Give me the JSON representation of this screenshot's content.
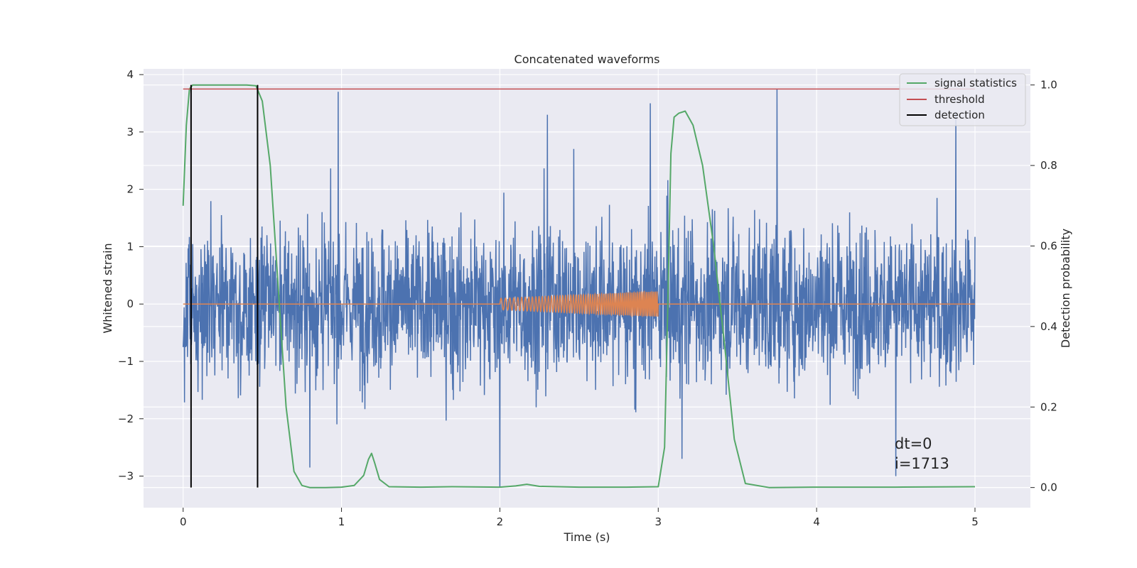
{
  "chart_data": {
    "type": "line",
    "title": "Concatenated waveforms",
    "xlabel": "Time (s)",
    "ylabel": "Whitened strain",
    "y2label": "Detection probability",
    "xlim": [
      -0.25,
      5.35
    ],
    "ylim": [
      -3.55,
      4.1
    ],
    "y2lim": [
      -0.05,
      1.04
    ],
    "x_ticks": [
      0,
      1,
      2,
      3,
      4,
      5
    ],
    "x_tick_labels": [
      "0",
      "1",
      "2",
      "3",
      "4",
      "5"
    ],
    "y_ticks": [
      -3,
      -2,
      -1,
      0,
      1,
      2,
      3,
      4
    ],
    "y_tick_labels": [
      "−3",
      "−2",
      "−1",
      "0",
      "1",
      "2",
      "3",
      "4"
    ],
    "y2_ticks": [
      0.0,
      0.2,
      0.4,
      0.6,
      0.8,
      1.0
    ],
    "y2_tick_labels": [
      "0.0",
      "0.2",
      "0.4",
      "0.6",
      "0.8",
      "1.0"
    ],
    "grid": true,
    "legend_position": "top-right",
    "colors": {
      "strain": "#4c72b0",
      "injection": "#dd8452",
      "statistics": "#55a868",
      "threshold": "#c44e52",
      "detection": "#000000",
      "axes_bg": "#eaeaf2",
      "grid": "#ffffff"
    },
    "legend": [
      "signal statistics",
      "threshold",
      "detection"
    ],
    "strain": {
      "x_range": [
        0,
        5
      ],
      "approx_envelope": [
        -2.2,
        2.2
      ],
      "spike_peaks": [
        {
          "x": 0.98,
          "y": 3.7
        },
        {
          "x": 2.0,
          "y": -3.2
        },
        {
          "x": 2.3,
          "y": 3.3
        },
        {
          "x": 2.95,
          "y": 3.5
        },
        {
          "x": 3.75,
          "y": 3.75
        },
        {
          "x": 4.88,
          "y": 3.35
        },
        {
          "x": 0.8,
          "y": -2.85
        },
        {
          "x": 4.5,
          "y": -3.0
        },
        {
          "x": 3.15,
          "y": -2.7
        }
      ]
    },
    "injection": {
      "x": [
        0,
        2.0,
        2.5,
        3.0,
        3.0,
        5.0
      ],
      "y": [
        0,
        0,
        0,
        0,
        0,
        0
      ],
      "chirp": {
        "x_start": 2.0,
        "x_end": 3.0,
        "amp_start": 0.1,
        "amp_end": 0.22
      }
    },
    "signal_statistics": {
      "x": [
        0.0,
        0.02,
        0.04,
        0.06,
        0.1,
        0.2,
        0.3,
        0.4,
        0.46,
        0.5,
        0.55,
        0.6,
        0.65,
        0.7,
        0.75,
        0.8,
        0.9,
        1.0,
        1.08,
        1.14,
        1.17,
        1.19,
        1.21,
        1.24,
        1.3,
        1.5,
        1.7,
        2.0,
        2.1,
        2.17,
        2.25,
        2.5,
        2.8,
        3.0,
        3.04,
        3.06,
        3.08,
        3.1,
        3.13,
        3.17,
        3.22,
        3.28,
        3.35,
        3.42,
        3.48,
        3.55,
        3.7,
        4.0,
        4.5,
        5.0
      ],
      "y": [
        0.7,
        0.9,
        0.99,
        1.0,
        1.0,
        1.0,
        1.0,
        1.0,
        0.998,
        0.96,
        0.8,
        0.5,
        0.2,
        0.04,
        0.005,
        0.0,
        0.0,
        0.001,
        0.005,
        0.03,
        0.07,
        0.085,
        0.06,
        0.02,
        0.002,
        0.001,
        0.002,
        0.001,
        0.004,
        0.008,
        0.003,
        0.001,
        0.001,
        0.002,
        0.1,
        0.45,
        0.83,
        0.92,
        0.93,
        0.935,
        0.9,
        0.8,
        0.6,
        0.35,
        0.12,
        0.01,
        0.0,
        0.001,
        0.001,
        0.002
      ]
    },
    "threshold": {
      "x": [
        0,
        5
      ],
      "y": 0.99
    },
    "detections": [
      {
        "x": 0.05
      },
      {
        "x": 0.47
      }
    ],
    "annotations": [
      "dt=0",
      "i=1713"
    ]
  }
}
